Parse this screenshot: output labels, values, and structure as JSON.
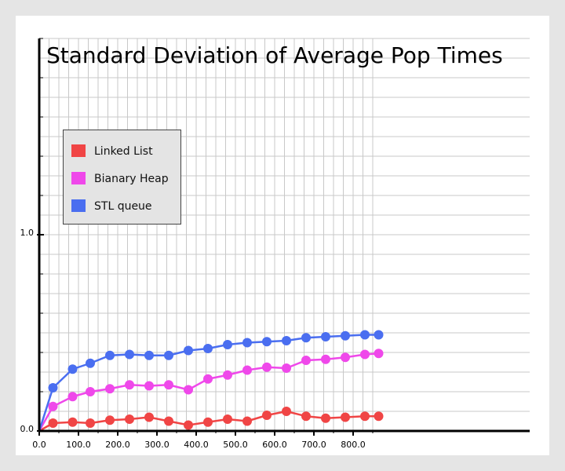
{
  "chart_data": {
    "type": "line",
    "title": "Standard Deviation of Average Pop Times",
    "xlabel": "",
    "ylabel": "",
    "xlim": [
      0,
      870
    ],
    "ylim": [
      0,
      2.0
    ],
    "x_ticks": [
      0,
      100,
      200,
      300,
      400,
      500,
      600,
      700,
      800
    ],
    "x_tick_labels": [
      "0.0",
      "100.0",
      "200.0",
      "300.0",
      "400.0",
      "500.0",
      "600.0",
      "700.0",
      "800.0"
    ],
    "y_ticks": [
      0,
      1.0
    ],
    "y_tick_labels": [
      "0.0",
      "1.0"
    ],
    "grid": true,
    "legend_position": "top-left",
    "x": [
      0,
      35,
      85,
      130,
      180,
      230,
      280,
      330,
      380,
      430,
      480,
      530,
      580,
      630,
      680,
      730,
      780,
      830,
      865
    ],
    "series": [
      {
        "name": "Linked List",
        "color": "#f04545",
        "values": [
          0.0,
          0.04,
          0.045,
          0.04,
          0.055,
          0.06,
          0.07,
          0.05,
          0.03,
          0.045,
          0.06,
          0.05,
          0.08,
          0.1,
          0.075,
          0.065,
          0.07,
          0.075,
          0.075
        ]
      },
      {
        "name": "Bianary Heap",
        "color": "#ef48ea",
        "values": [
          0.0,
          0.125,
          0.175,
          0.2,
          0.215,
          0.235,
          0.23,
          0.235,
          0.21,
          0.265,
          0.285,
          0.31,
          0.325,
          0.32,
          0.36,
          0.365,
          0.375,
          0.39,
          0.395
        ]
      },
      {
        "name": "STL queue",
        "color": "#4a6ef0",
        "values": [
          0.0,
          0.22,
          0.315,
          0.345,
          0.385,
          0.39,
          0.385,
          0.385,
          0.41,
          0.42,
          0.44,
          0.45,
          0.455,
          0.46,
          0.475,
          0.48,
          0.485,
          0.49,
          0.49
        ]
      }
    ]
  }
}
